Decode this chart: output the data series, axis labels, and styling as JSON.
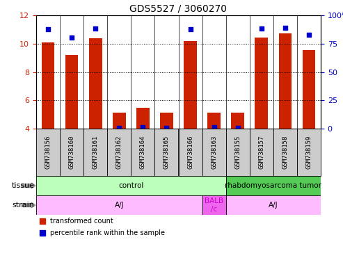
{
  "title": "GDS5527 / 3060270",
  "samples": [
    "GSM738156",
    "GSM738160",
    "GSM738161",
    "GSM738162",
    "GSM738164",
    "GSM738165",
    "GSM738166",
    "GSM738163",
    "GSM738155",
    "GSM738157",
    "GSM738158",
    "GSM738159"
  ],
  "bar_values": [
    10.1,
    9.2,
    10.4,
    5.15,
    5.45,
    5.15,
    10.2,
    5.15,
    5.15,
    10.45,
    10.7,
    9.55
  ],
  "dot_values": [
    11.0,
    10.45,
    11.05,
    4.05,
    4.1,
    4.05,
    11.0,
    4.1,
    4.05,
    11.05,
    11.1,
    10.65
  ],
  "bar_color": "#cc2200",
  "dot_color": "#0000cc",
  "ylim_left": [
    4,
    12
  ],
  "ylim_right": [
    0,
    100
  ],
  "yticks_left": [
    4,
    6,
    8,
    10,
    12
  ],
  "yticks_right": [
    0,
    25,
    50,
    75,
    100
  ],
  "ytick_labels_right": [
    "0",
    "25",
    "50",
    "75",
    "100%"
  ],
  "tissue_labels": [
    {
      "text": "control",
      "start": 0,
      "end": 8,
      "color": "#bbffbb"
    },
    {
      "text": "rhabdomyosarcoma tumor",
      "start": 8,
      "end": 12,
      "color": "#55cc55"
    }
  ],
  "strain_labels": [
    {
      "text": "A/J",
      "start": 0,
      "end": 7,
      "color": "#ffbbff"
    },
    {
      "text": "BALB\n/c",
      "start": 7,
      "end": 8,
      "color": "#ee66ee"
    },
    {
      "text": "A/J",
      "start": 8,
      "end": 12,
      "color": "#ffbbff"
    }
  ],
  "tissue_row_label": "tissue",
  "strain_row_label": "strain",
  "legend_items": [
    {
      "color": "#cc2200",
      "label": "transformed count"
    },
    {
      "color": "#0000cc",
      "label": "percentile rank within the sample"
    }
  ],
  "bar_bottom": 4.0,
  "tick_label_color_left": "#cc2200",
  "tick_label_color_right": "#0000cc",
  "title_fontsize": 10,
  "tick_fontsize": 8,
  "sample_label_fontsize": 6.5,
  "row_label_fontsize": 8,
  "legend_fontsize": 7,
  "annotation_row_fontsize": 7.5
}
